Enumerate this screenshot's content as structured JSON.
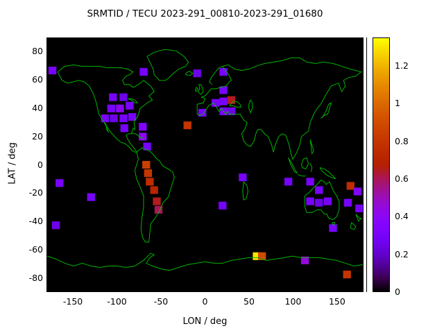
{
  "chart_data": {
    "type": "heatmap",
    "title": "SRMTID / TECU 2023-291_00810-2023-291_01680",
    "xlabel": "LON / deg",
    "ylabel": "LAT / deg",
    "xlim": [
      -180,
      180
    ],
    "ylim": [
      -90,
      90
    ],
    "xticks": [
      -150,
      -100,
      -50,
      0,
      50,
      100,
      150
    ],
    "yticks": [
      80,
      60,
      40,
      20,
      0,
      -20,
      -40,
      -60,
      -80
    ],
    "grid": false,
    "legend": "colorbar-right",
    "plot_background": "#000000",
    "coastline_color": "#00b400",
    "colorbar": {
      "min": 0,
      "max": 1.35,
      "ticks": [
        0,
        0.2,
        0.4,
        0.6,
        0.8,
        1,
        1.2
      ]
    },
    "cell_size_deg": {
      "lon": 9,
      "lat": 5.5
    },
    "points": [
      {
        "lon": -174,
        "lat": 67,
        "tecu": 0.3
      },
      {
        "lon": -70,
        "lat": 66,
        "tecu": 0.3
      },
      {
        "lon": -9,
        "lat": 65,
        "tecu": 0.25
      },
      {
        "lon": 21,
        "lat": 66,
        "tecu": 0.3
      },
      {
        "lon": -105,
        "lat": 48,
        "tecu": 0.3
      },
      {
        "lon": -93,
        "lat": 48,
        "tecu": 0.25
      },
      {
        "lon": -107,
        "lat": 40,
        "tecu": 0.3
      },
      {
        "lon": -97,
        "lat": 40,
        "tecu": 0.4
      },
      {
        "lon": -86,
        "lat": 42,
        "tecu": 0.3
      },
      {
        "lon": -114,
        "lat": 33,
        "tecu": 0.3
      },
      {
        "lon": -104,
        "lat": 33,
        "tecu": 0.25
      },
      {
        "lon": -93,
        "lat": 33,
        "tecu": 0.3
      },
      {
        "lon": -83,
        "lat": 34,
        "tecu": 0.3
      },
      {
        "lon": -92,
        "lat": 26,
        "tecu": 0.3
      },
      {
        "lon": -71,
        "lat": 27,
        "tecu": 0.35
      },
      {
        "lon": -71,
        "lat": 20,
        "tecu": 0.4
      },
      {
        "lon": -66,
        "lat": 13,
        "tecu": 0.3
      },
      {
        "lon": -20,
        "lat": 28,
        "tecu": 0.8
      },
      {
        "lon": -3,
        "lat": 37,
        "tecu": 0.3
      },
      {
        "lon": 12,
        "lat": 44,
        "tecu": 0.3
      },
      {
        "lon": 21,
        "lat": 45,
        "tecu": 0.3
      },
      {
        "lon": 30,
        "lat": 46,
        "tecu": 0.65
      },
      {
        "lon": 21,
        "lat": 38,
        "tecu": 0.3
      },
      {
        "lon": 30,
        "lat": 38,
        "tecu": 0.25
      },
      {
        "lon": 21,
        "lat": 53,
        "tecu": 0.3
      },
      {
        "lon": -67,
        "lat": 0,
        "tecu": 0.85
      },
      {
        "lon": -65,
        "lat": -6,
        "tecu": 0.8
      },
      {
        "lon": -63,
        "lat": -12,
        "tecu": 0.75
      },
      {
        "lon": -58,
        "lat": -18,
        "tecu": 0.7
      },
      {
        "lon": -55,
        "lat": -26,
        "tecu": 0.65
      },
      {
        "lon": -53,
        "lat": -32,
        "tecu": 0.6
      },
      {
        "lon": -166,
        "lat": -13,
        "tecu": 0.3
      },
      {
        "lon": -130,
        "lat": -23,
        "tecu": 0.3
      },
      {
        "lon": -170,
        "lat": -43,
        "tecu": 0.25
      },
      {
        "lon": 20,
        "lat": -29,
        "tecu": 0.3
      },
      {
        "lon": 43,
        "lat": -9,
        "tecu": 0.3
      },
      {
        "lon": 95,
        "lat": -12,
        "tecu": 0.3
      },
      {
        "lon": 120,
        "lat": -12,
        "tecu": 0.3
      },
      {
        "lon": 130,
        "lat": -18,
        "tecu": 0.3
      },
      {
        "lon": 120,
        "lat": -26,
        "tecu": 0.3
      },
      {
        "lon": 130,
        "lat": -27,
        "tecu": 0.25
      },
      {
        "lon": 140,
        "lat": -26,
        "tecu": 0.3
      },
      {
        "lon": 166,
        "lat": -15,
        "tecu": 0.75
      },
      {
        "lon": 174,
        "lat": -19,
        "tecu": 0.35
      },
      {
        "lon": 163,
        "lat": -27,
        "tecu": 0.3
      },
      {
        "lon": 176,
        "lat": -31,
        "tecu": 0.3
      },
      {
        "lon": 146,
        "lat": -45,
        "tecu": 0.3
      },
      {
        "lon": 59,
        "lat": -65,
        "tecu": 1.3
      },
      {
        "lon": 65,
        "lat": -65,
        "tecu": 0.9
      },
      {
        "lon": 114,
        "lat": -68,
        "tecu": 0.45
      },
      {
        "lon": 162,
        "lat": -78,
        "tecu": 0.8
      }
    ]
  }
}
